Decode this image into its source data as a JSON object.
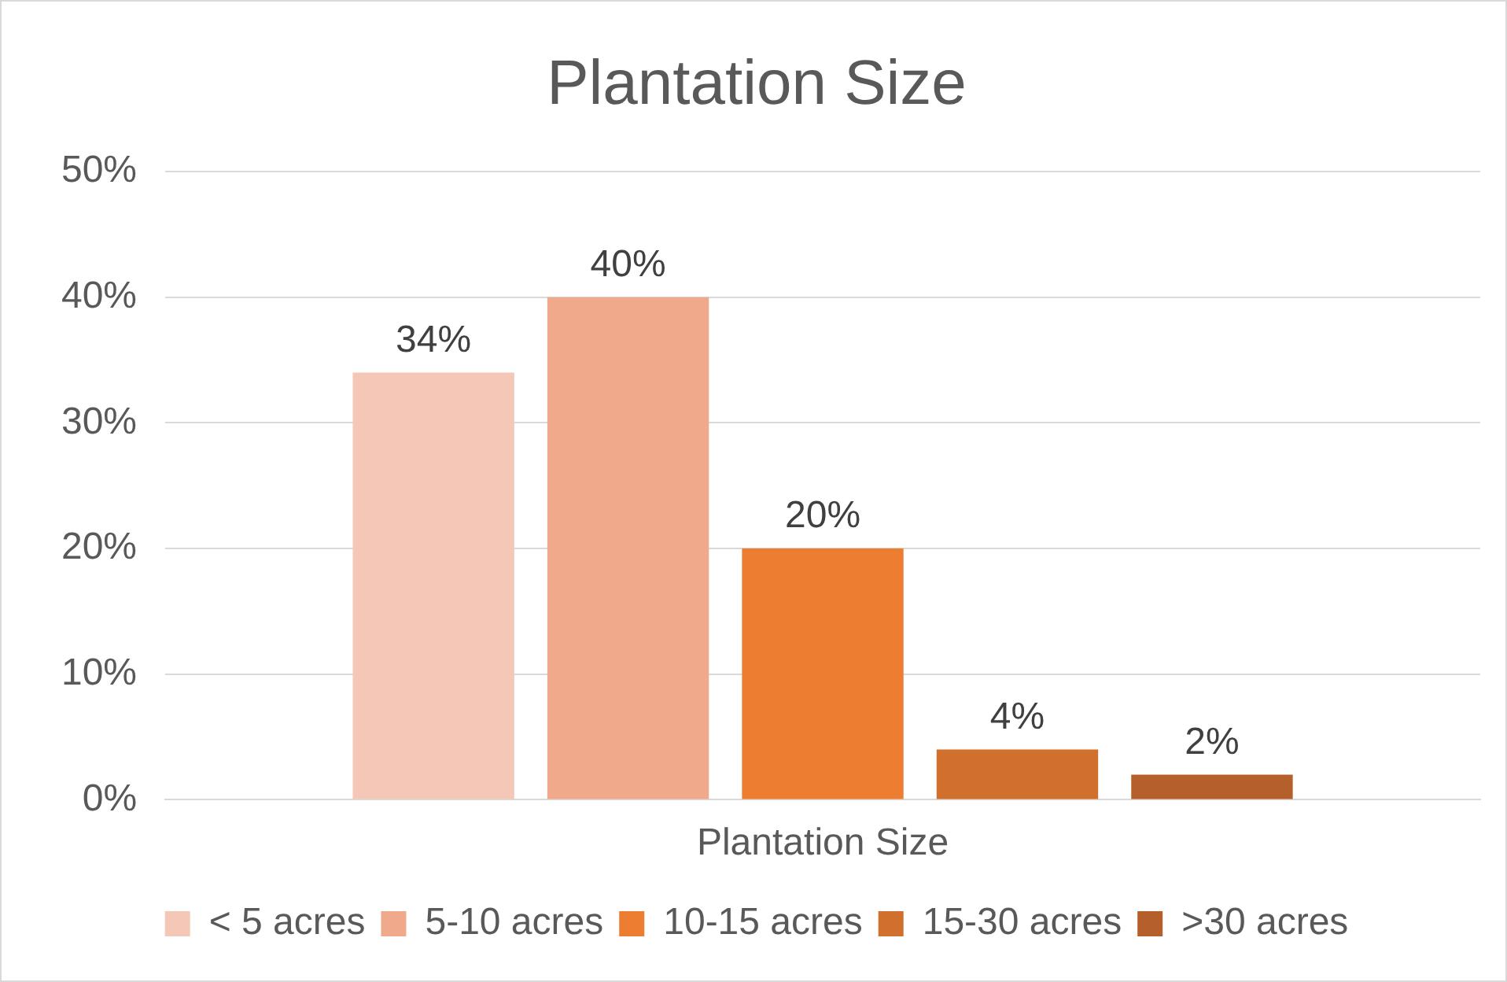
{
  "chart_data": {
    "type": "bar",
    "title": "Plantation Size",
    "categories": [
      "Plantation Size"
    ],
    "series": [
      {
        "name": "< 5 acres",
        "color": "#f4c7b7",
        "values": [
          34
        ],
        "value_labels": [
          "34%"
        ]
      },
      {
        "name": "5-10 acres",
        "color": "#f0a98b",
        "values": [
          40
        ],
        "value_labels": [
          "40%"
        ]
      },
      {
        "name": "10-15 acres",
        "color": "#ed7d31",
        "values": [
          20
        ],
        "value_labels": [
          "20%"
        ]
      },
      {
        "name": "15-30 acres",
        "color": "#d0702c",
        "values": [
          4
        ],
        "value_labels": [
          "4%"
        ]
      },
      {
        "name": ">30 acres",
        "color": "#b5602a",
        "values": [
          2
        ],
        "value_labels": [
          "2%"
        ]
      }
    ],
    "ylim": [
      0,
      50
    ],
    "yticks": [
      {
        "value": 0,
        "label": "0%"
      },
      {
        "value": 10,
        "label": "10%"
      },
      {
        "value": 20,
        "label": "20%"
      },
      {
        "value": 30,
        "label": "30%"
      },
      {
        "value": 40,
        "label": "40%"
      },
      {
        "value": 50,
        "label": "50%"
      }
    ],
    "grid": "y",
    "legend": "bottom"
  }
}
